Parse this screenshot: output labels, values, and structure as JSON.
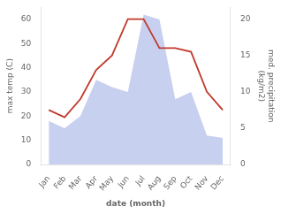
{
  "chart_data": {
    "type": "line",
    "categories": [
      "Jan",
      "Feb",
      "Mar",
      "Apr",
      "May",
      "Jun",
      "Jul",
      "Aug",
      "Sep",
      "Oct",
      "Nov",
      "Dec"
    ],
    "series": [
      {
        "type": "area",
        "color": "#c8d0f0",
        "values": [
          18,
          15,
          20,
          35,
          32,
          30,
          62,
          60,
          27,
          30,
          12,
          11
        ]
      },
      {
        "type": "line",
        "color": "#c0392b",
        "axis": "y2",
        "values": [
          7.5,
          6.5,
          9.0,
          13,
          15,
          20,
          20,
          16,
          16,
          15.5,
          10,
          7.5
        ]
      }
    ],
    "xlabel": "date (month)",
    "ylabel": "max temp (C)",
    "y2label": "med. precipitation\n(kg/m2)",
    "ylim": [
      0,
      65
    ],
    "yticks": [
      0,
      10,
      20,
      30,
      40,
      50,
      60
    ],
    "y2lim": [
      0,
      21.6
    ],
    "y2ticks": [
      0,
      5,
      10,
      15,
      20
    ],
    "grid": false
  }
}
